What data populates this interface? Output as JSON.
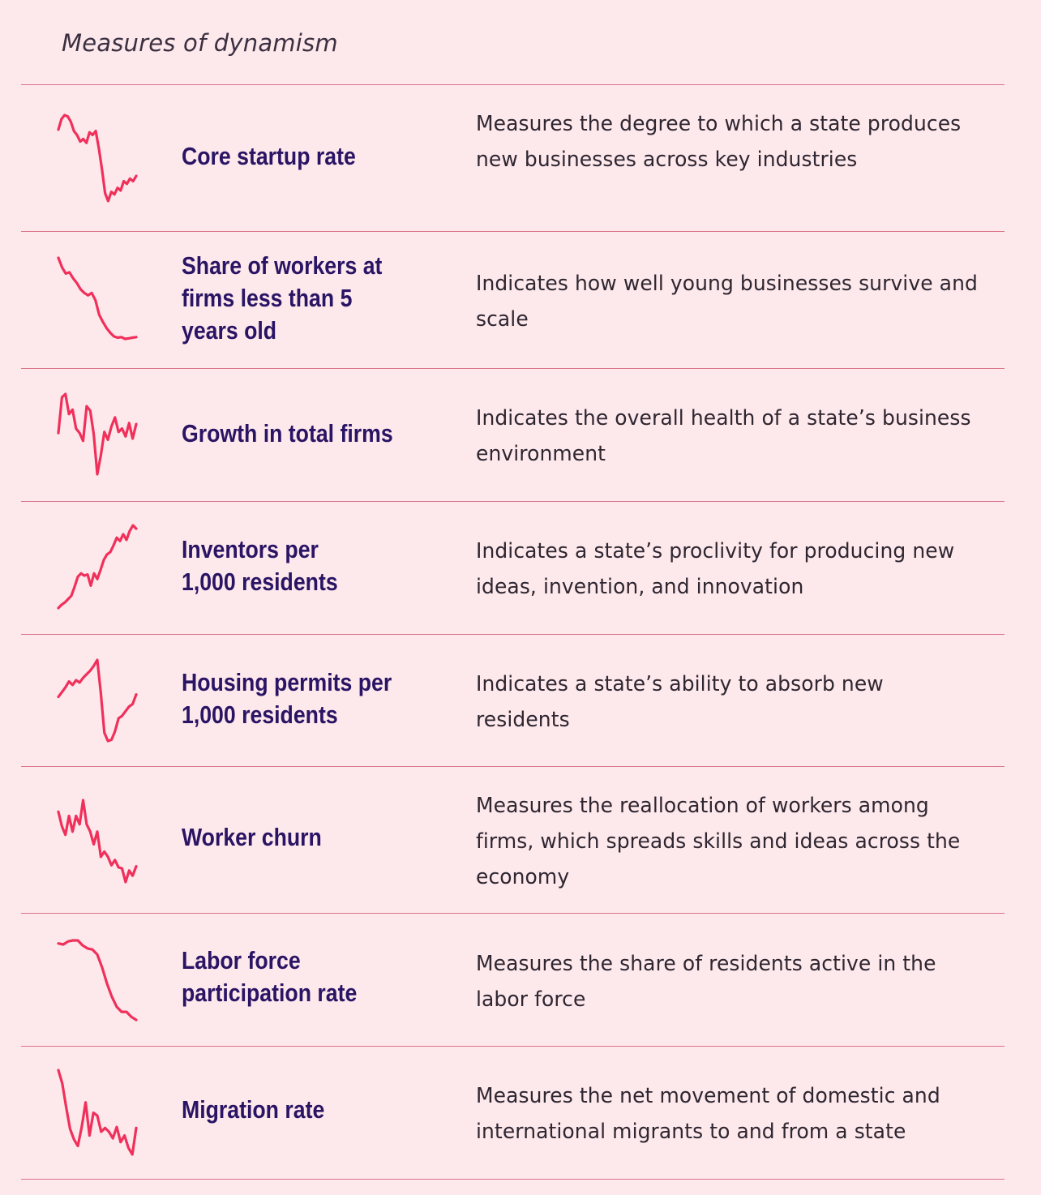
{
  "header": {
    "title": "Measures of dynamism"
  },
  "colors": {
    "background": "#fde8ec",
    "sparkline": "#f0305a",
    "metric_title": "#2a1464",
    "divider": "#d97489"
  },
  "chart_data": [
    {
      "type": "line",
      "title": "Core startup rate",
      "description": "Measures the degree to which a state produces new businesses across key industries",
      "values": [
        6.3,
        7.1,
        7.4,
        7.3,
        6.9,
        6.2,
        5.9,
        5.4,
        5.6,
        5.3,
        6.1,
        5.9,
        6.2,
        4.9,
        3.3,
        1.5,
        0.9,
        1.6,
        1.4,
        1.9,
        1.7,
        2.4,
        2.2,
        2.6,
        2.4,
        2.8
      ]
    },
    {
      "type": "line",
      "title": "Share of workers at\nfirms less than 5\nyears old",
      "description": "Indicates how well young businesses survive and scale",
      "values": [
        9.5,
        8.7,
        8.2,
        8.3,
        7.8,
        7.4,
        6.9,
        6.6,
        6.4,
        6.6,
        6.0,
        4.8,
        4.2,
        3.7,
        3.3,
        3.0,
        2.9,
        2.95,
        2.8,
        2.85,
        2.9,
        2.95
      ]
    },
    {
      "type": "line",
      "title": "Growth in total firms",
      "description": "Indicates the overall health of a state’s business environment",
      "values": [
        4.2,
        7.4,
        7.7,
        5.9,
        6.3,
        4.6,
        4.2,
        3.5,
        6.6,
        6.2,
        4.1,
        0.5,
        2.2,
        4.3,
        3.6,
        4.8,
        5.6,
        4.3,
        4.6,
        3.9,
        5.1,
        3.7,
        5.0
      ]
    },
    {
      "type": "line",
      "title": "Inventors per\n1,000 residents",
      "description": "Indicates a state’s proclivity for producing new ideas, invention, and innovation",
      "values": [
        0.5,
        0.8,
        1.0,
        1.3,
        1.6,
        2.4,
        3.3,
        3.6,
        3.4,
        3.5,
        2.5,
        3.6,
        3.1,
        3.9,
        4.8,
        5.3,
        5.5,
        6.1,
        6.8,
        6.5,
        7.1,
        6.6,
        7.4,
        7.9,
        7.6
      ]
    },
    {
      "type": "line",
      "title": "Housing permits per\n1,000 residents",
      "description": "Indicates a state’s ability to absorb new residents",
      "values": [
        5.9,
        6.3,
        6.7,
        7.2,
        6.9,
        7.3,
        7.1,
        7.5,
        7.8,
        8.1,
        8.5,
        9.0,
        6.2,
        2.9,
        2.2,
        2.3,
        3.0,
        4.1,
        4.3,
        4.7,
        5.1,
        5.3,
        6.1
      ]
    },
    {
      "type": "line",
      "title": "Worker churn",
      "description": "Measures the reallocation of workers among firms, which spreads skills and ideas across the economy",
      "values": [
        8.5,
        7.1,
        6.3,
        8.1,
        6.6,
        8.1,
        7.3,
        9.6,
        7.3,
        6.6,
        5.4,
        6.6,
        4.2,
        4.7,
        4.2,
        3.4,
        3.9,
        3.2,
        3.1,
        1.8,
        2.9,
        2.4,
        3.3
      ]
    },
    {
      "type": "line",
      "title": "Labor force\nparticipation rate",
      "description": "Measures the share of residents active in the labor force",
      "values": [
        8.7,
        8.6,
        8.9,
        9.0,
        9.0,
        8.5,
        8.2,
        8.1,
        7.6,
        6.3,
        4.7,
        3.4,
        2.4,
        1.9,
        1.9,
        1.4,
        1.1
      ]
    },
    {
      "type": "line",
      "title": "Migration rate",
      "description": "Measures the net movement of domestic and international migrants to and from a state",
      "values": [
        9.5,
        8.1,
        5.6,
        3.3,
        2.2,
        1.5,
        3.5,
        6.1,
        2.6,
        5.0,
        4.7,
        3.0,
        3.4,
        3.0,
        2.3,
        3.5,
        1.9,
        2.6,
        1.3,
        0.6,
        3.4
      ]
    }
  ]
}
